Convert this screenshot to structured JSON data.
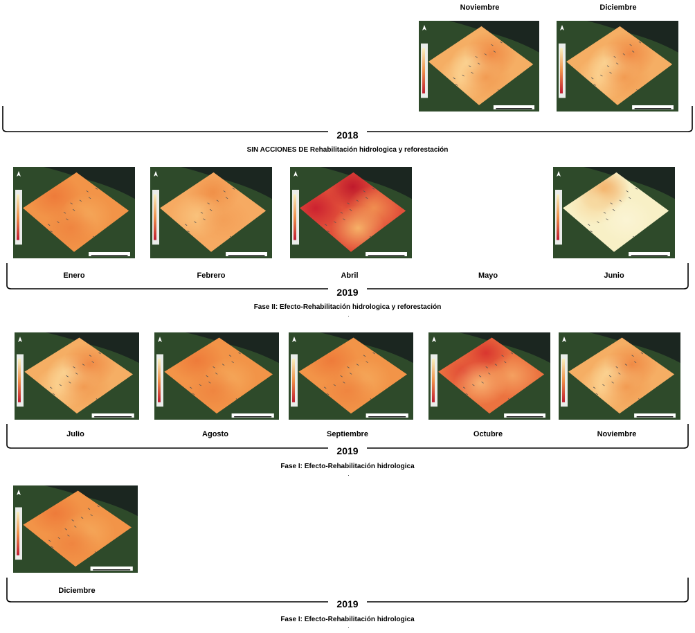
{
  "sections": [
    {
      "id": "s2018",
      "year": "2018",
      "caption": "SIN ACCIONES DE Rehabilitación hidrologica y reforestación",
      "maps": [
        {
          "month": "Noviembre",
          "scheme": "orange-mixed"
        },
        {
          "month": "Diciembre",
          "scheme": "orange-mixed"
        }
      ]
    },
    {
      "id": "s2019a",
      "year": "2019",
      "caption": "Fase II: Efecto-Rehabilitación hidrologica y reforestación",
      "maps": [
        {
          "month": "Enero",
          "scheme": "orange"
        },
        {
          "month": "Febrero",
          "scheme": "orange-light"
        },
        {
          "month": "Abril",
          "scheme": "red"
        },
        {
          "month": "Mayo",
          "scheme": "none"
        },
        {
          "month": "Junio",
          "scheme": "pale"
        }
      ]
    },
    {
      "id": "s2019b",
      "year": "2019",
      "caption": "Fase I: Efecto-Rehabilitación hidrologica",
      "maps": [
        {
          "month": "Julio",
          "scheme": "orange-mixed"
        },
        {
          "month": "Agosto",
          "scheme": "orange"
        },
        {
          "month": "Septiembre",
          "scheme": "orange"
        },
        {
          "month": "Octubre",
          "scheme": "red-orange"
        },
        {
          "month": "Noviembre",
          "scheme": "orange-mixed"
        }
      ]
    },
    {
      "id": "s2019c",
      "year": "2019",
      "caption": "Fase I: Efecto-Rehabilitación hidrologica",
      "maps": [
        {
          "month": "Diciembre",
          "scheme": "orange"
        }
      ]
    }
  ],
  "colors": {
    "forest": "#2e4a2a",
    "sea": "#1b2620",
    "orange": "#f39a4e",
    "red": "#d4312f",
    "pale": "#f7efc8",
    "frame": "#ffffff"
  }
}
